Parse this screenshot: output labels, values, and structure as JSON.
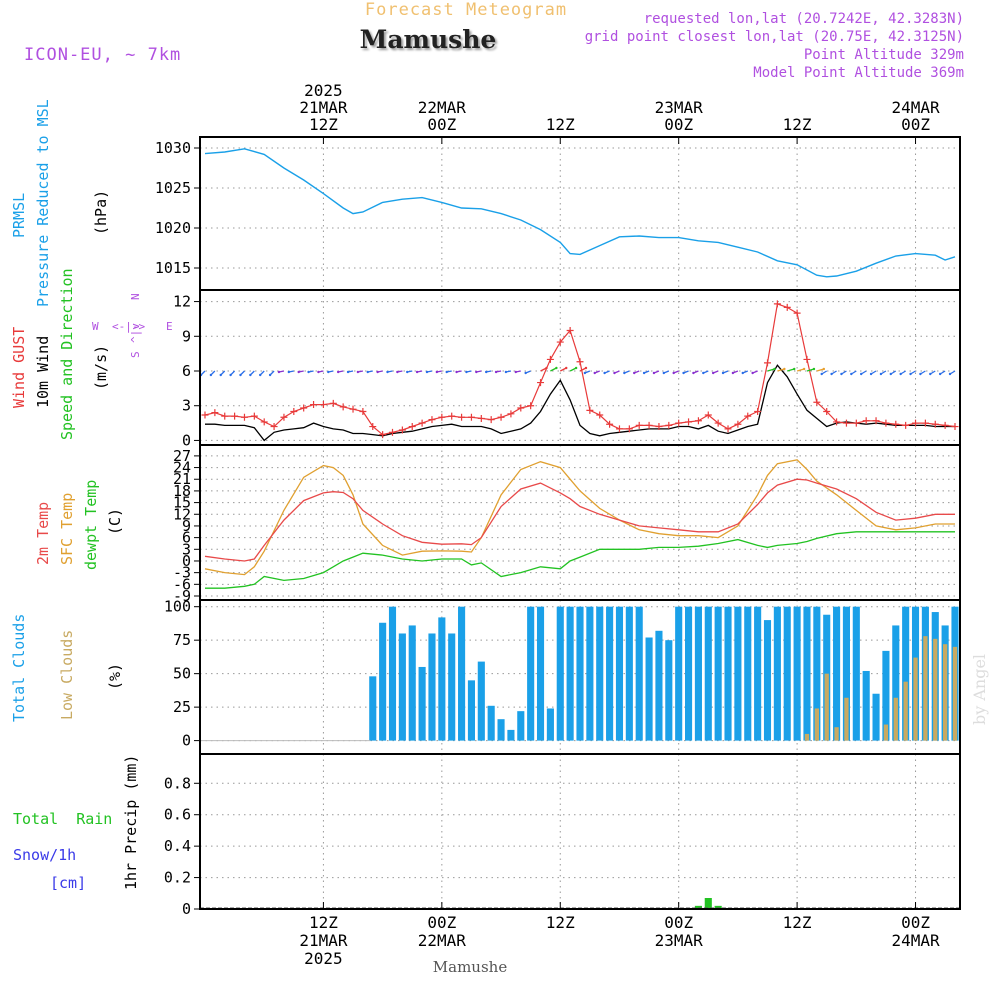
{
  "header": {
    "product_title": "Forecast Meteogram",
    "location": "Mamushe",
    "model": "ICON-EU, ~ 7km",
    "requested": "requested lon,lat (20.7242E, 42.3283N)",
    "gridpoint": "grid point closest lon,lat (20.75E, 42.3125N)",
    "point_alt": "Point Altitude 329m",
    "model_alt": "Model Point Altitude 369m",
    "watermark": "by Angel",
    "footer_location": "Mamushe"
  },
  "time_axis": {
    "top_labels": [
      {
        "lines": [
          "2025",
          "21MAR",
          "12Z"
        ],
        "h": 12
      },
      {
        "lines": [
          "22MAR",
          "00Z"
        ],
        "h": 24
      },
      {
        "lines": [
          "12Z"
        ],
        "h": 36
      },
      {
        "lines": [
          "23MAR",
          "00Z"
        ],
        "h": 48
      },
      {
        "lines": [
          "12Z"
        ],
        "h": 60
      },
      {
        "lines": [
          "24MAR",
          "00Z"
        ],
        "h": 72
      }
    ],
    "bottom_labels": [
      {
        "lines": [
          "12Z",
          "21MAR",
          "2025"
        ],
        "h": 12
      },
      {
        "lines": [
          "00Z",
          "22MAR"
        ],
        "h": 24
      },
      {
        "lines": [
          "12Z"
        ],
        "h": 36
      },
      {
        "lines": [
          "00Z",
          "23MAR"
        ],
        "h": 48
      },
      {
        "lines": [
          "12Z"
        ],
        "h": 60
      },
      {
        "lines": [
          "00Z",
          "24MAR"
        ],
        "h": 72
      }
    ],
    "hour_range": [
      0,
      76
    ],
    "grid_hours": [
      12,
      24,
      36,
      48,
      60,
      72
    ]
  },
  "panel_labels": {
    "pressure": {
      "l1": "PRMSL",
      "l2": "Pressure Reduced to MSL",
      "unit": "(hPa)"
    },
    "wind": {
      "l1": "Wind GUST",
      "l2": "10m Wind",
      "l3": "Speed and Direction",
      "unit": "(m/s)",
      "compass_n": "N",
      "compass_s": "S",
      "compass_w": "W",
      "compass_e": "E",
      "compass_h": "<-|->",
      "compass_v": "^|v"
    },
    "temp": {
      "l1": "2m Temp",
      "l2": "SFC Temp",
      "l3": "dewpt Temp",
      "unit": "(C)"
    },
    "cloud": {
      "l1": "Total Clouds",
      "l2": "Low Clouds",
      "unit": "(%)"
    },
    "precip": {
      "l1": "Total  Rain",
      "l2": "Snow/1h",
      "l3": "[cm]",
      "unit": "1hr Precip (mm)"
    }
  },
  "colors": {
    "pressure": "#1aa0e8",
    "gust": "#e83a3a",
    "wind": "#000000",
    "temp2m": "#e84a4a",
    "sfc": "#e0a030",
    "dewpt": "#22c222",
    "total_cloud": "#1aa0e8",
    "low_cloud": "#c8aa62",
    "rain": "#22c222",
    "title": "#f0c070",
    "purple": "#b050e0",
    "snow": "#3a3ae8"
  },
  "chart_data": [
    {
      "type": "line",
      "name": "pressure",
      "ylabel": "(hPa)",
      "ylim": [
        1013,
        1031
      ],
      "yticks": [
        1015,
        1020,
        1025,
        1030
      ],
      "x": [
        0,
        2,
        4,
        6,
        8,
        10,
        12,
        14,
        15,
        16,
        18,
        20,
        22,
        24,
        26,
        28,
        30,
        32,
        34,
        36,
        37,
        38,
        40,
        42,
        44,
        46,
        48,
        50,
        52,
        54,
        56,
        58,
        60,
        62,
        63,
        64,
        66,
        68,
        70,
        72,
        74,
        75,
        76
      ],
      "y": [
        1029.3,
        1029.5,
        1029.9,
        1029.2,
        1027.5,
        1026,
        1024.3,
        1022.5,
        1021.8,
        1022,
        1023.2,
        1023.6,
        1023.8,
        1023.2,
        1022.5,
        1022.4,
        1021.8,
        1021,
        1019.8,
        1018.2,
        1016.8,
        1016.7,
        1017.8,
        1018.9,
        1019,
        1018.8,
        1018.8,
        1018.4,
        1018.2,
        1017.6,
        1017,
        1015.9,
        1015.4,
        1014.1,
        1013.9,
        1014,
        1014.6,
        1015.6,
        1016.5,
        1016.8,
        1016.6,
        1016,
        1016.4
      ]
    },
    {
      "type": "line",
      "name": "wind",
      "ylabel": "(m/s)",
      "ylim": [
        -1,
        13
      ],
      "yticks": [
        0,
        3,
        6,
        9,
        12
      ],
      "x": [
        0,
        1,
        2,
        3,
        4,
        5,
        6,
        7,
        8,
        9,
        10,
        11,
        12,
        13,
        14,
        15,
        16,
        17,
        18,
        19,
        20,
        21,
        22,
        23,
        24,
        25,
        26,
        27,
        28,
        29,
        30,
        31,
        32,
        33,
        34,
        35,
        36,
        37,
        38,
        39,
        40,
        41,
        42,
        43,
        44,
        45,
        46,
        47,
        48,
        49,
        50,
        51,
        52,
        53,
        54,
        55,
        56,
        57,
        58,
        59,
        60,
        61,
        62,
        63,
        64,
        65,
        66,
        67,
        68,
        69,
        70,
        71,
        72,
        73,
        74,
        75,
        76
      ],
      "gust": [
        2.2,
        2.4,
        2.1,
        2.1,
        2.0,
        2.1,
        1.6,
        1.2,
        2.0,
        2.5,
        2.8,
        3.1,
        3.1,
        3.2,
        2.9,
        2.7,
        2.5,
        1.2,
        0.5,
        0.7,
        0.9,
        1.2,
        1.5,
        1.8,
        2.0,
        2.1,
        2.0,
        2.0,
        1.9,
        1.8,
        2.0,
        2.3,
        2.8,
        3.0,
        5.0,
        7.0,
        8.5,
        9.5,
        6.8,
        2.6,
        2.2,
        1.4,
        1.0,
        1.0,
        1.3,
        1.3,
        1.2,
        1.3,
        1.5,
        1.6,
        1.7,
        2.2,
        1.5,
        1.0,
        1.4,
        2.1,
        2.5,
        6.7,
        11.8,
        11.5,
        11.0,
        7.0,
        3.3,
        2.5,
        1.6,
        1.5,
        1.5,
        1.7,
        1.7,
        1.5,
        1.4,
        1.3,
        1.5,
        1.5,
        1.4,
        1.3,
        1.2
      ],
      "wind": [
        1.4,
        1.4,
        1.3,
        1.3,
        1.3,
        1.1,
        0.0,
        0.7,
        0.9,
        1.0,
        1.1,
        1.5,
        1.2,
        1.0,
        0.9,
        0.6,
        0.6,
        0.5,
        0.4,
        0.6,
        0.7,
        0.8,
        1.0,
        1.2,
        1.3,
        1.4,
        1.2,
        1.2,
        1.2,
        1.0,
        0.6,
        0.8,
        1.0,
        1.5,
        2.5,
        4.0,
        5.2,
        3.5,
        1.3,
        0.6,
        0.4,
        0.6,
        0.7,
        0.8,
        0.9,
        1.0,
        1.0,
        1.0,
        1.2,
        1.2,
        1.0,
        1.3,
        0.8,
        0.6,
        0.9,
        1.2,
        1.4,
        5.0,
        6.5,
        5.5,
        4.0,
        2.6,
        1.9,
        1.2,
        1.5,
        1.6,
        1.5,
        1.4,
        1.5,
        1.4,
        1.3,
        1.3,
        1.3,
        1.3,
        1.2,
        1.2,
        1.2
      ],
      "arrow_level": 6
    },
    {
      "type": "line",
      "name": "temperature",
      "ylabel": "(C)",
      "ylim": [
        -9,
        28
      ],
      "yticks": [
        -9,
        -6,
        -3,
        0,
        3,
        6,
        9,
        12,
        15,
        18,
        21,
        24,
        27
      ],
      "ytick_labels": [
        "-9",
        "-6",
        "-3",
        "0",
        "3",
        "6",
        "9",
        "12",
        "15",
        "18",
        "21",
        "24",
        "27"
      ],
      "x": [
        0,
        2,
        4,
        5,
        6,
        8,
        10,
        12,
        13,
        14,
        15,
        16,
        18,
        20,
        22,
        24,
        26,
        27,
        28,
        30,
        32,
        34,
        36,
        37,
        38,
        40,
        42,
        44,
        46,
        48,
        50,
        52,
        54,
        56,
        57,
        58,
        60,
        61,
        62,
        64,
        66,
        68,
        70,
        72,
        74,
        76
      ],
      "temp2m": [
        1.2,
        0.5,
        0.0,
        0.5,
        4.0,
        10.5,
        15.5,
        17.5,
        17.8,
        17.6,
        16.0,
        13.0,
        9.5,
        6.5,
        4.8,
        4.3,
        4.4,
        4.2,
        6.0,
        14.0,
        18.5,
        20.0,
        17.5,
        16.0,
        14.0,
        12.0,
        10.5,
        9.0,
        8.5,
        8.0,
        7.5,
        7.5,
        9.5,
        14.5,
        17.5,
        19.5,
        21.0,
        20.8,
        20.0,
        18.5,
        16.0,
        12.5,
        10.5,
        11.0,
        12.0,
        12.0
      ],
      "sfc": [
        -2.0,
        -3.0,
        -3.5,
        -1.5,
        2.5,
        13.0,
        21.5,
        24.5,
        24.0,
        22.0,
        17.0,
        9.5,
        4.0,
        1.5,
        2.5,
        2.6,
        2.5,
        2.3,
        6.0,
        17.0,
        23.5,
        25.5,
        24.0,
        21.0,
        18.0,
        13.5,
        10.5,
        8.0,
        7.0,
        6.5,
        6.5,
        6.0,
        9.0,
        17.0,
        22.0,
        25.0,
        26.0,
        23.5,
        20.5,
        17.0,
        13.0,
        9.0,
        8.0,
        8.5,
        9.5,
        9.5
      ],
      "dewpt": [
        -7.0,
        -7.0,
        -6.5,
        -6.0,
        -4.0,
        -5.0,
        -4.5,
        -3.0,
        -1.5,
        0.0,
        1.0,
        2.0,
        1.5,
        0.5,
        0.0,
        0.5,
        0.5,
        -1.0,
        -0.5,
        -4.0,
        -3.0,
        -1.5,
        -2.0,
        0.0,
        1.0,
        3.0,
        3.0,
        3.0,
        3.5,
        3.5,
        3.8,
        4.5,
        5.5,
        4.0,
        3.5,
        4.0,
        4.5,
        5.0,
        5.8,
        7.0,
        7.5,
        7.5,
        7.5,
        7.5,
        7.5,
        7.5
      ]
    },
    {
      "type": "bar",
      "name": "clouds",
      "ylabel": "(%)",
      "ylim": [
        -10,
        105
      ],
      "yticks": [
        0,
        25,
        50,
        75,
        100
      ],
      "x": [
        0,
        1,
        2,
        3,
        4,
        5,
        6,
        7,
        8,
        9,
        10,
        11,
        12,
        13,
        14,
        15,
        16,
        17,
        18,
        19,
        20,
        21,
        22,
        23,
        24,
        25,
        26,
        27,
        28,
        29,
        30,
        31,
        32,
        33,
        34,
        35,
        36,
        37,
        38,
        39,
        40,
        41,
        42,
        43,
        44,
        45,
        46,
        47,
        48,
        49,
        50,
        51,
        52,
        53,
        54,
        55,
        56,
        57,
        58,
        59,
        60,
        61,
        62,
        63,
        64,
        65,
        66,
        67,
        68,
        69,
        70,
        71,
        72,
        73,
        74,
        75,
        76
      ],
      "total": [
        0,
        0,
        0,
        0,
        0,
        0,
        0,
        0,
        0,
        0,
        0,
        0,
        0,
        0,
        0,
        0,
        0,
        48,
        88,
        100,
        80,
        86,
        55,
        80,
        92,
        80,
        100,
        45,
        59,
        26,
        16,
        8,
        22,
        100,
        100,
        24,
        100,
        100,
        100,
        100,
        100,
        100,
        100,
        100,
        100,
        77,
        82,
        75,
        100,
        100,
        100,
        100,
        100,
        100,
        100,
        100,
        100,
        90,
        100,
        100,
        100,
        100,
        100,
        94,
        100,
        100,
        100,
        52,
        35,
        67,
        86,
        100,
        100,
        100,
        96,
        86,
        100
      ],
      "low": [
        0,
        0,
        0,
        0,
        0,
        0,
        0,
        0,
        0,
        0,
        0,
        0,
        0,
        0,
        0,
        0,
        0,
        0,
        0,
        0,
        0,
        0,
        0,
        0,
        0,
        0,
        0,
        0,
        0,
        0,
        0,
        0,
        0,
        0,
        0,
        0,
        0,
        0,
        0,
        0,
        0,
        0,
        0,
        0,
        0,
        0,
        0,
        0,
        0,
        0,
        0,
        0,
        0,
        0,
        0,
        0,
        0,
        0,
        0,
        0,
        0,
        5,
        24,
        50,
        10,
        32,
        0,
        0,
        0,
        12,
        32,
        44,
        62,
        78,
        76,
        72,
        70
      ]
    },
    {
      "type": "bar",
      "name": "precip",
      "ylabel": "1hr Precip (mm)",
      "ylim": [
        0,
        0.98
      ],
      "yticks": [
        0,
        0.2,
        0.4,
        0.6,
        0.8
      ],
      "ytick_labels": [
        "0",
        "0.2",
        "0.4",
        "0.6",
        "0.8"
      ],
      "x": [
        50,
        51,
        52
      ],
      "values": [
        0.02,
        0.07,
        0.02
      ]
    }
  ]
}
